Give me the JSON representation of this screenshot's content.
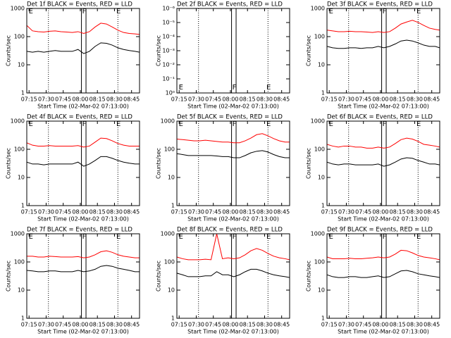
{
  "chart_data": [
    {
      "type": "line",
      "title": "Det 1f BLACK = Events, RED = LLD",
      "xlabel": "Start Time (02-Mar-02 07:13:00)",
      "ylabel": "Counts/sec",
      "log_y": true,
      "x": [
        "07:13",
        "07:18",
        "07:23",
        "07:28",
        "07:33",
        "07:38",
        "07:43",
        "07:48",
        "07:53",
        "07:58",
        "08:03",
        "08:08",
        "08:13",
        "08:18",
        "08:23",
        "08:28",
        "08:33",
        "08:38",
        "08:43",
        "08:48",
        "08:52"
      ],
      "xlim": [
        "07:13",
        "08:52"
      ],
      "xticks": [
        "07:15",
        "07:30",
        "07:45",
        "08:00",
        "08:15",
        "08:30",
        "08:45"
      ],
      "ylim": [
        1,
        1000
      ],
      "yticks": [
        1,
        10,
        100,
        1000
      ],
      "dotted_lines": [
        "07:32",
        "08:33"
      ],
      "box": [
        "08:01",
        "08:05"
      ],
      "flags": [
        {
          "label": "E",
          "x": "07:14"
        },
        {
          "label": "F",
          "x": "08:01"
        },
        {
          "label": "E",
          "x": "08:31"
        }
      ],
      "flags_at": "top",
      "series": [
        {
          "color": "#ff0000",
          "values": [
            250,
            160,
            150,
            145,
            155,
            160,
            150,
            145,
            140,
            150,
            130,
            150,
            220,
            300,
            280,
            220,
            170,
            140,
            130,
            125,
            120
          ]
        },
        {
          "color": "#000000",
          "values": [
            30,
            28,
            30,
            28,
            30,
            32,
            30,
            30,
            30,
            35,
            25,
            30,
            45,
            60,
            58,
            50,
            40,
            35,
            32,
            30,
            28
          ]
        }
      ]
    },
    {
      "type": "line",
      "title": "Det 2f BLACK = Events, RED = LLD",
      "xlabel": "Start Time (02-Mar-02 07:13:00)",
      "ylabel": "Counts/sec",
      "log_y": true,
      "x": [],
      "xlim": [
        "07:13",
        "08:52"
      ],
      "xticks": [
        "07:15",
        "07:30",
        "07:45",
        "08:00",
        "08:15",
        "08:30",
        "08:45"
      ],
      "ylim": [
        1,
        1e-06
      ],
      "yticks": [
        {
          "value": 1,
          "label": "10⁰"
        },
        {
          "value": 0.1,
          "label": "10⁻¹"
        },
        {
          "value": 0.01,
          "label": "10⁻²"
        },
        {
          "value": 0.001,
          "label": "10⁻³"
        },
        {
          "value": 0.0001,
          "label": "10⁻⁴"
        },
        {
          "value": 1e-05,
          "label": "10⁻⁵"
        },
        {
          "value": 1e-06,
          "label": "10⁻⁶"
        }
      ],
      "dotted_lines": [
        "07:32",
        "08:33"
      ],
      "box": [
        "08:01",
        "08:05"
      ],
      "flags": [
        {
          "label": "E",
          "x": "07:14"
        },
        {
          "label": "F",
          "x": "08:01"
        },
        {
          "label": "E",
          "x": "08:31"
        }
      ],
      "flags_at": "bottom",
      "series": []
    },
    {
      "type": "line",
      "title": "Det 3f BLACK = Events, RED = LLD",
      "xlabel": "Start Time (02-Mar-02 07:13:00)",
      "ylabel": "Counts/sec",
      "log_y": true,
      "x": [
        "07:13",
        "07:18",
        "07:23",
        "07:28",
        "07:33",
        "07:38",
        "07:43",
        "07:48",
        "07:53",
        "07:58",
        "08:03",
        "08:08",
        "08:13",
        "08:18",
        "08:23",
        "08:28",
        "08:33",
        "08:38",
        "08:43",
        "08:48",
        "08:52"
      ],
      "xlim": [
        "07:13",
        "08:52"
      ],
      "xticks": [
        "07:15",
        "07:30",
        "07:45",
        "08:00",
        "08:15",
        "08:30",
        "08:45"
      ],
      "ylim": [
        1,
        1000
      ],
      "yticks": [
        1,
        10,
        100,
        1000
      ],
      "dotted_lines": [
        "07:32",
        "08:33"
      ],
      "box": [
        "08:01",
        "08:05"
      ],
      "flags": [
        {
          "label": "E",
          "x": "07:14"
        },
        {
          "label": "F",
          "x": "08:01"
        },
        {
          "label": "E",
          "x": "08:31"
        }
      ],
      "flags_at": "top",
      "series": [
        {
          "color": "#ff0000",
          "values": [
            170,
            160,
            150,
            150,
            155,
            150,
            150,
            145,
            140,
            150,
            140,
            150,
            200,
            280,
            330,
            380,
            320,
            250,
            200,
            180,
            170
          ]
        },
        {
          "color": "#000000",
          "values": [
            45,
            40,
            38,
            38,
            40,
            40,
            38,
            40,
            40,
            45,
            40,
            45,
            55,
            70,
            75,
            70,
            60,
            50,
            45,
            45,
            40
          ]
        }
      ]
    },
    {
      "type": "line",
      "title": "Det 4f BLACK = Events, RED = LLD",
      "xlabel": "Start Time (02-Mar-02 07:13:00)",
      "ylabel": "Counts/sec",
      "log_y": true,
      "x": [
        "07:13",
        "07:18",
        "07:23",
        "07:28",
        "07:33",
        "07:38",
        "07:43",
        "07:48",
        "07:53",
        "07:58",
        "08:03",
        "08:08",
        "08:13",
        "08:18",
        "08:23",
        "08:28",
        "08:33",
        "08:38",
        "08:43",
        "08:48",
        "08:52"
      ],
      "xlim": [
        "07:13",
        "08:52"
      ],
      "xticks": [
        "07:15",
        "07:30",
        "07:45",
        "08:00",
        "08:15",
        "08:30",
        "08:45"
      ],
      "ylim": [
        1,
        1000
      ],
      "yticks": [
        1,
        10,
        100,
        1000
      ],
      "dotted_lines": [
        "07:32",
        "08:33"
      ],
      "box": [
        "08:01",
        "08:05"
      ],
      "flags": [
        {
          "label": "E",
          "x": "07:14"
        },
        {
          "label": "F",
          "x": "08:01"
        },
        {
          "label": "E",
          "x": "08:31"
        }
      ],
      "flags_at": "top",
      "series": [
        {
          "color": "#ff0000",
          "values": [
            170,
            140,
            130,
            130,
            135,
            130,
            130,
            130,
            130,
            135,
            120,
            130,
            180,
            250,
            240,
            200,
            160,
            140,
            130,
            130,
            130
          ]
        },
        {
          "color": "#000000",
          "values": [
            35,
            30,
            30,
            28,
            30,
            30,
            30,
            30,
            30,
            35,
            25,
            30,
            40,
            55,
            55,
            48,
            40,
            35,
            32,
            30,
            30
          ]
        }
      ]
    },
    {
      "type": "line",
      "title": "Det 5f BLACK = Events, RED = LLD",
      "xlabel": "Start Time (02-Mar-02 07:13:00)",
      "ylabel": "Counts/sec",
      "log_y": true,
      "x": [
        "07:13",
        "07:18",
        "07:23",
        "07:28",
        "07:33",
        "07:38",
        "07:43",
        "07:48",
        "07:53",
        "07:58",
        "08:03",
        "08:08",
        "08:13",
        "08:18",
        "08:23",
        "08:28",
        "08:33",
        "08:38",
        "08:43",
        "08:48",
        "08:52"
      ],
      "xlim": [
        "07:13",
        "08:52"
      ],
      "xticks": [
        "07:15",
        "07:30",
        "07:45",
        "08:00",
        "08:15",
        "08:30",
        "08:45"
      ],
      "ylim": [
        1,
        1000
      ],
      "yticks": [
        1,
        10,
        100,
        1000
      ],
      "dotted_lines": [
        "07:32",
        "08:33"
      ],
      "box": [
        "08:01",
        "08:05"
      ],
      "flags": [
        {
          "label": "E",
          "x": "07:14"
        },
        {
          "label": "F",
          "x": "08:01"
        },
        {
          "label": "E",
          "x": "08:31"
        }
      ],
      "flags_at": "top",
      "series": [
        {
          "color": "#ff0000",
          "values": [
            230,
            220,
            210,
            200,
            200,
            210,
            200,
            190,
            180,
            180,
            170,
            170,
            200,
            250,
            330,
            360,
            300,
            240,
            200,
            180,
            180
          ]
        },
        {
          "color": "#000000",
          "values": [
            70,
            65,
            60,
            60,
            60,
            60,
            60,
            58,
            55,
            55,
            50,
            50,
            60,
            75,
            85,
            90,
            80,
            65,
            55,
            50,
            50
          ]
        }
      ]
    },
    {
      "type": "line",
      "title": "Det 6f BLACK = Events, RED = LLD",
      "xlabel": "Start Time (02-Mar-02 07:13:00)",
      "ylabel": "Counts/sec",
      "log_y": true,
      "x": [
        "07:13",
        "07:18",
        "07:23",
        "07:28",
        "07:33",
        "07:38",
        "07:43",
        "07:48",
        "07:53",
        "07:58",
        "08:03",
        "08:08",
        "08:13",
        "08:18",
        "08:23",
        "08:28",
        "08:33",
        "08:38",
        "08:43",
        "08:48",
        "08:52"
      ],
      "xlim": [
        "07:13",
        "08:52"
      ],
      "xticks": [
        "07:15",
        "07:30",
        "07:45",
        "08:00",
        "08:15",
        "08:30",
        "08:45"
      ],
      "ylim": [
        1,
        1000
      ],
      "yticks": [
        1,
        10,
        100,
        1000
      ],
      "dotted_lines": [
        "07:32",
        "08:33"
      ],
      "box": [
        "08:01",
        "08:05"
      ],
      "flags": [
        {
          "label": "E",
          "x": "07:14"
        },
        {
          "label": "F",
          "x": "08:01"
        },
        {
          "label": "E",
          "x": "08:31"
        }
      ],
      "flags_at": "top",
      "series": [
        {
          "color": "#ff0000",
          "values": [
            150,
            130,
            120,
            130,
            130,
            120,
            120,
            110,
            110,
            120,
            110,
            120,
            160,
            220,
            250,
            230,
            190,
            150,
            140,
            130,
            120
          ]
        },
        {
          "color": "#000000",
          "values": [
            35,
            30,
            28,
            30,
            30,
            28,
            28,
            28,
            28,
            30,
            25,
            28,
            35,
            45,
            50,
            48,
            40,
            35,
            30,
            30,
            28
          ]
        }
      ]
    },
    {
      "type": "line",
      "title": "Det 7f BLACK = Events, RED = LLD",
      "xlabel": "Start Time (02-Mar-02 07:13:00)",
      "ylabel": "Counts/sec",
      "log_y": true,
      "x": [
        "07:13",
        "07:18",
        "07:23",
        "07:28",
        "07:33",
        "07:38",
        "07:43",
        "07:48",
        "07:53",
        "07:58",
        "08:03",
        "08:08",
        "08:13",
        "08:18",
        "08:23",
        "08:28",
        "08:33",
        "08:38",
        "08:43",
        "08:48",
        "08:52"
      ],
      "xlim": [
        "07:13",
        "08:52"
      ],
      "xticks": [
        "07:15",
        "07:30",
        "07:45",
        "08:00",
        "08:15",
        "08:30",
        "08:45"
      ],
      "ylim": [
        1,
        1000
      ],
      "yticks": [
        1,
        10,
        100,
        1000
      ],
      "dotted_lines": [
        "07:32",
        "08:33"
      ],
      "box": [
        "08:01",
        "08:05"
      ],
      "flags": [
        {
          "label": "E",
          "x": "07:14"
        },
        {
          "label": "F",
          "x": "08:01"
        },
        {
          "label": "E",
          "x": "08:31"
        }
      ],
      "flags_at": "top",
      "series": [
        {
          "color": "#ff0000",
          "values": [
            160,
            160,
            150,
            150,
            160,
            155,
            150,
            150,
            150,
            155,
            140,
            150,
            180,
            230,
            250,
            220,
            180,
            160,
            150,
            140,
            140
          ]
        },
        {
          "color": "#000000",
          "values": [
            50,
            48,
            45,
            45,
            48,
            48,
            45,
            45,
            45,
            50,
            45,
            48,
            55,
            70,
            75,
            70,
            60,
            55,
            50,
            45,
            45
          ]
        }
      ]
    },
    {
      "type": "line",
      "title": "Det 8f BLACK = Events, RED = LLD",
      "xlabel": "Start Time (02-Mar-02 07:13:00)",
      "ylabel": "Counts/sec",
      "log_y": true,
      "x": [
        "07:13",
        "07:18",
        "07:23",
        "07:28",
        "07:33",
        "07:38",
        "07:43",
        "07:48",
        "07:53",
        "07:58",
        "08:03",
        "08:08",
        "08:13",
        "08:18",
        "08:23",
        "08:28",
        "08:33",
        "08:38",
        "08:43",
        "08:48",
        "08:52"
      ],
      "xlim": [
        "07:13",
        "08:52"
      ],
      "xticks": [
        "07:15",
        "07:30",
        "07:45",
        "08:00",
        "08:15",
        "08:30",
        "08:45"
      ],
      "ylim": [
        1,
        1000
      ],
      "yticks": [
        1,
        10,
        100,
        1000
      ],
      "dotted_lines": [
        "07:32",
        "08:33"
      ],
      "box": [
        "08:01",
        "08:05"
      ],
      "flags": [
        {
          "label": "E",
          "x": "07:14"
        },
        {
          "label": "F",
          "x": "08:01"
        },
        {
          "label": "E",
          "x": "08:31"
        }
      ],
      "flags_at": "top",
      "series": [
        {
          "color": "#ff0000",
          "values": [
            150,
            130,
            120,
            120,
            120,
            125,
            120,
            1000,
            130,
            140,
            130,
            140,
            180,
            250,
            300,
            260,
            200,
            160,
            140,
            130,
            120
          ]
        },
        {
          "color": "#000000",
          "values": [
            40,
            35,
            30,
            30,
            30,
            32,
            32,
            45,
            35,
            35,
            30,
            35,
            45,
            55,
            55,
            48,
            40,
            35,
            32,
            30,
            28
          ]
        }
      ]
    },
    {
      "type": "line",
      "title": "Det 9f BLACK = Events, RED = LLD",
      "xlabel": "Start Time (02-Mar-02 07:13:00)",
      "ylabel": "Counts/sec",
      "log_y": true,
      "x": [
        "07:13",
        "07:18",
        "07:23",
        "07:28",
        "07:33",
        "07:38",
        "07:43",
        "07:48",
        "07:53",
        "07:58",
        "08:03",
        "08:08",
        "08:13",
        "08:18",
        "08:23",
        "08:28",
        "08:33",
        "08:38",
        "08:43",
        "08:48",
        "08:52"
      ],
      "xlim": [
        "07:13",
        "08:52"
      ],
      "xticks": [
        "07:15",
        "07:30",
        "07:45",
        "08:00",
        "08:15",
        "08:30",
        "08:45"
      ],
      "ylim": [
        1,
        1000
      ],
      "yticks": [
        1,
        10,
        100,
        1000
      ],
      "dotted_lines": [
        "07:32",
        "08:33"
      ],
      "box": [
        "08:01",
        "08:05"
      ],
      "flags": [
        {
          "label": "E",
          "x": "07:14"
        },
        {
          "label": "F",
          "x": "08:01"
        },
        {
          "label": "E",
          "x": "08:31"
        }
      ],
      "flags_at": "top",
      "series": [
        {
          "color": "#ff0000",
          "values": [
            150,
            130,
            130,
            130,
            135,
            130,
            130,
            135,
            140,
            150,
            140,
            150,
            190,
            260,
            250,
            210,
            170,
            150,
            140,
            130,
            120
          ]
        },
        {
          "color": "#000000",
          "values": [
            35,
            30,
            28,
            28,
            30,
            30,
            28,
            28,
            30,
            32,
            28,
            30,
            38,
            48,
            50,
            45,
            38,
            35,
            32,
            30,
            28
          ]
        }
      ]
    }
  ]
}
